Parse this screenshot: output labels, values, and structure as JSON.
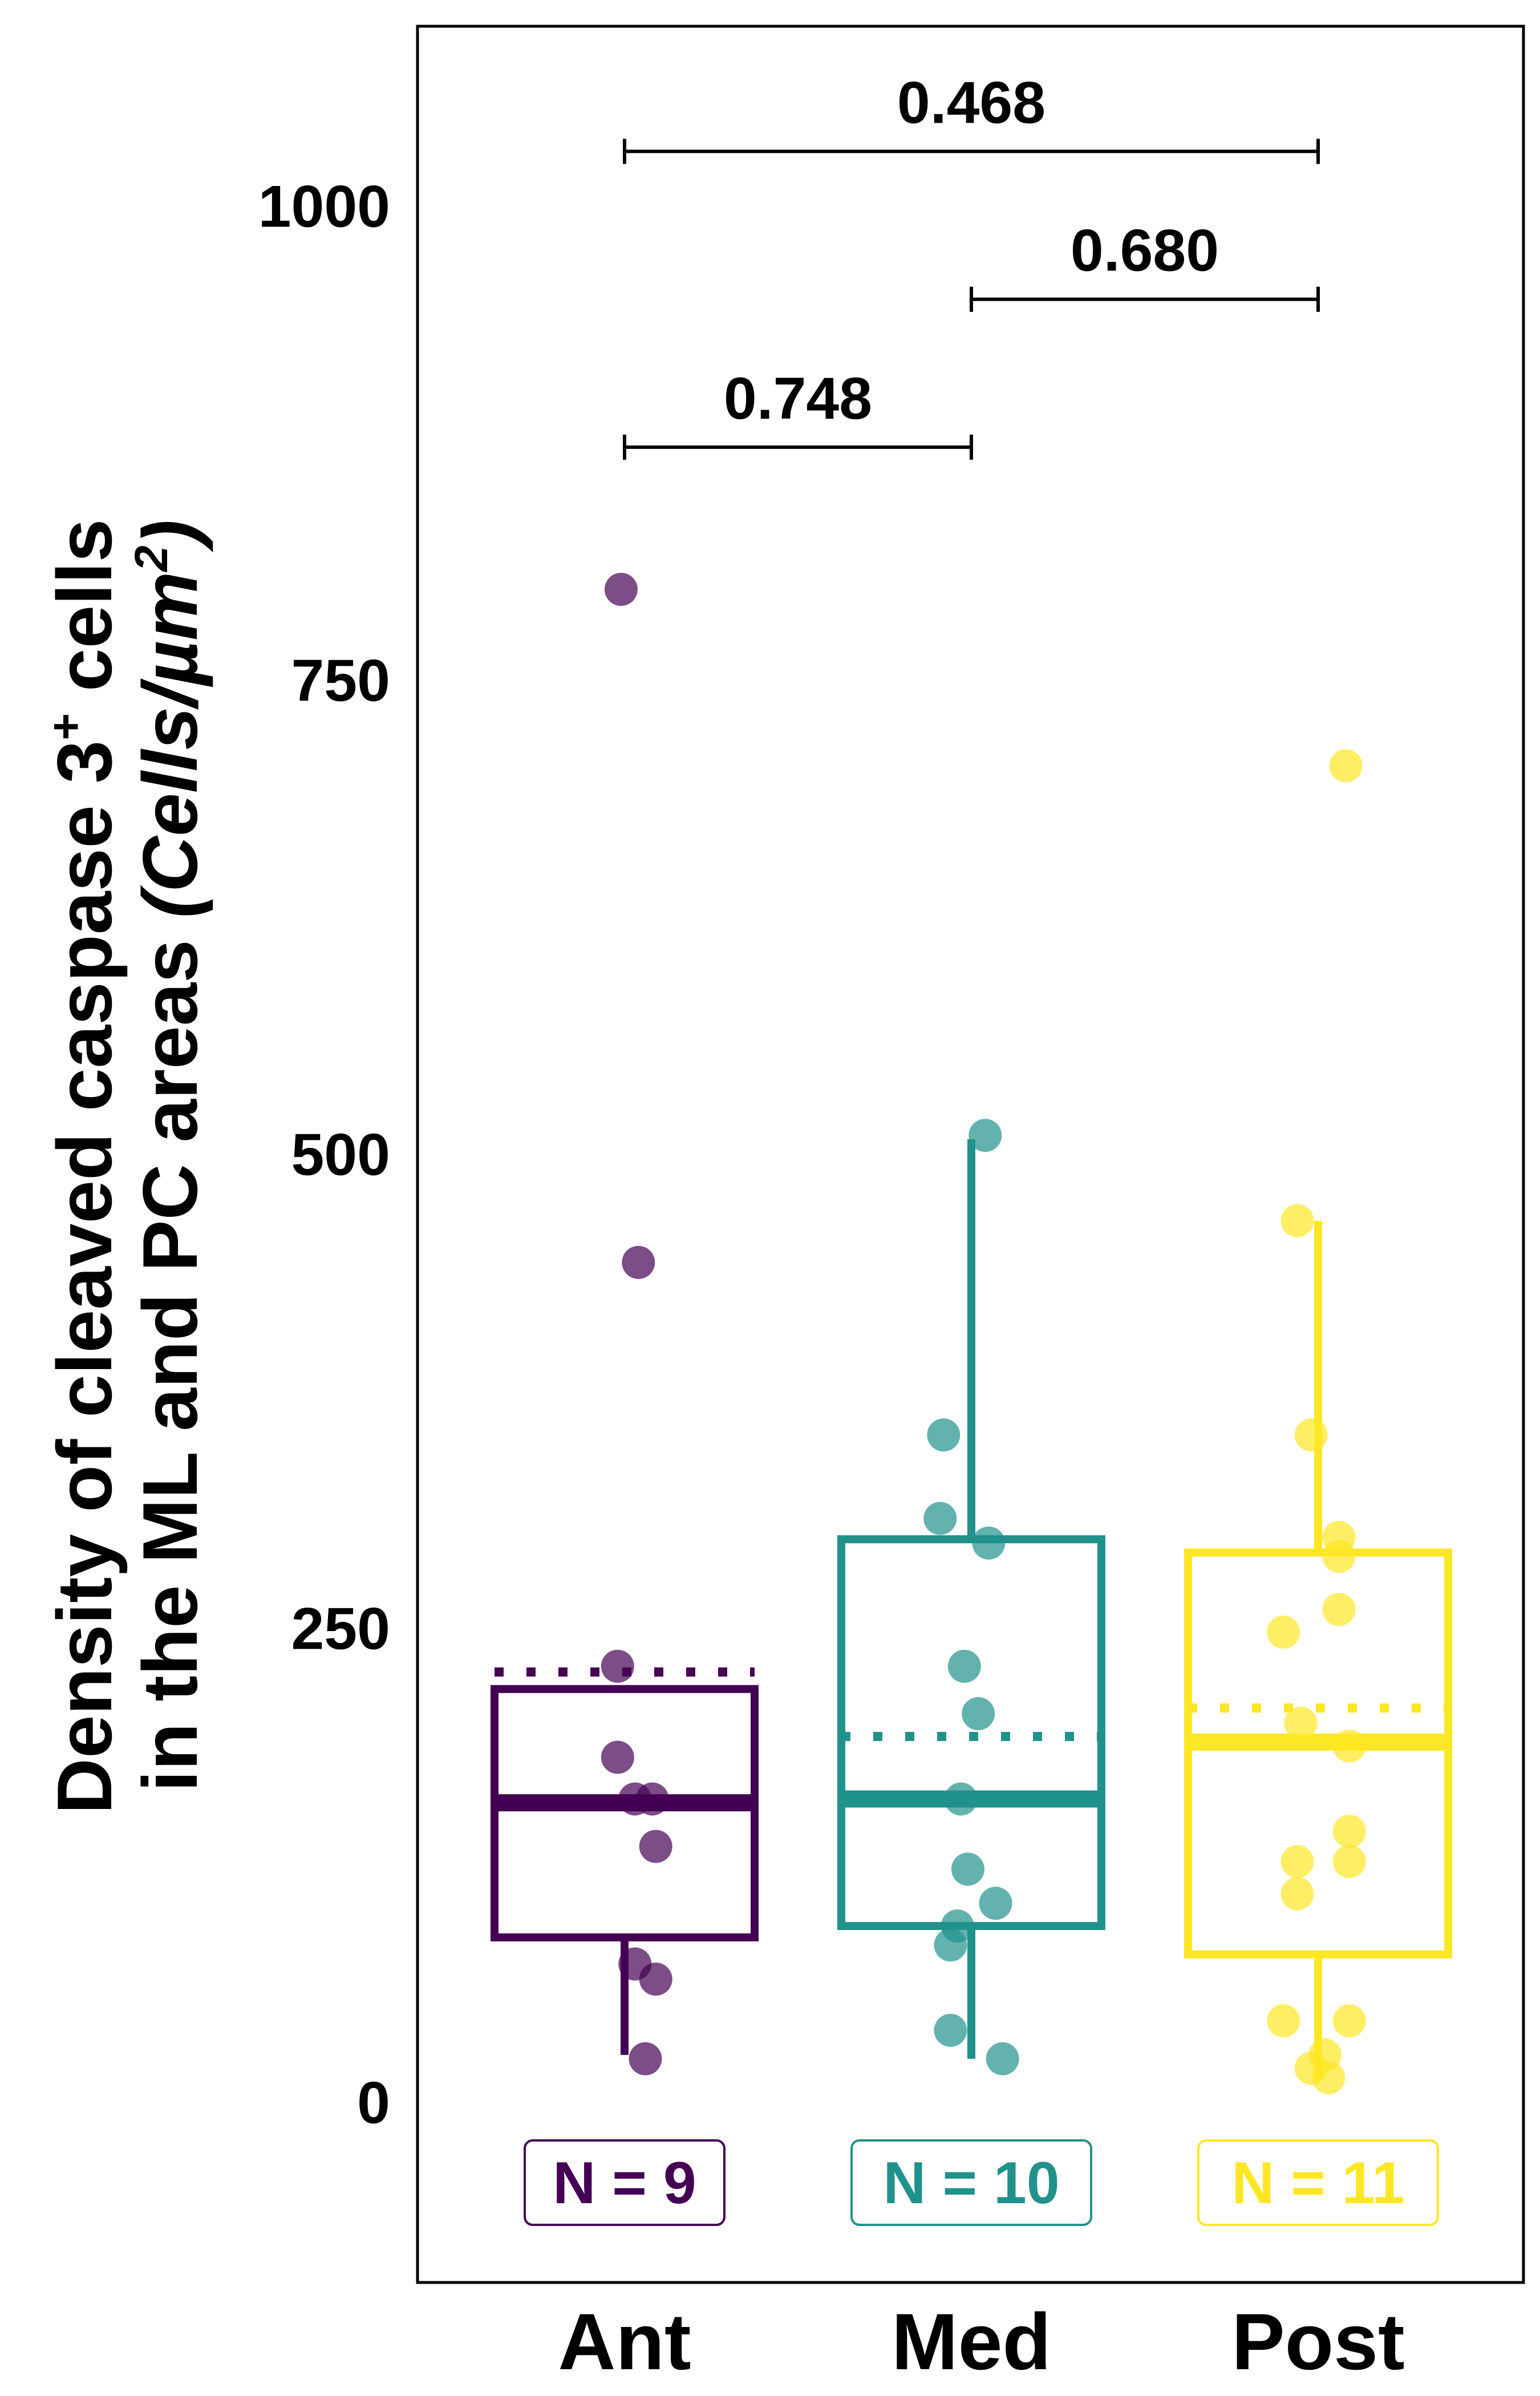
{
  "chart_data": {
    "type": "box",
    "ylabel": {
      "line1_prefix": "Density of cleaved caspase 3",
      "line1_sup": "+",
      "line1_suffix": " cells",
      "line2_plain": "in the ML and PC areas ",
      "line2_italic": "(Cells/µm",
      "line2_sup": "2",
      "line2_end": ")"
    },
    "xlabel": "",
    "ylim": [
      -95,
      1095
    ],
    "yticks": [
      0,
      250,
      500,
      750,
      1000
    ],
    "grid": false,
    "categories": [
      "Ant",
      "Med",
      "Post"
    ],
    "colors": [
      "#440154",
      "#21918C",
      "#FDE725"
    ],
    "groups": [
      {
        "name": "Ant",
        "n_label": "N = 9",
        "whisker_low": 25,
        "q1": 87,
        "median": 158,
        "q3": 218,
        "whisker_high": 218,
        "mean": 227,
        "points": [
          {
            "x": -0.01,
            "y": 798
          },
          {
            "x": 0.04,
            "y": 443
          },
          {
            "x": -0.02,
            "y": 230
          },
          {
            "x": -0.02,
            "y": 182
          },
          {
            "x": 0.03,
            "y": 160
          },
          {
            "x": 0.08,
            "y": 160
          },
          {
            "x": 0.09,
            "y": 135
          },
          {
            "x": 0.03,
            "y": 73
          },
          {
            "x": 0.09,
            "y": 65
          },
          {
            "x": 0.06,
            "y": 23
          }
        ]
      },
      {
        "name": "Med",
        "n_label": "N = 10",
        "whisker_low": 23,
        "q1": 93,
        "median": 160,
        "q3": 297,
        "whisker_high": 508,
        "mean": 193,
        "points": [
          {
            "x": 0.04,
            "y": 510
          },
          {
            "x": -0.08,
            "y": 352
          },
          {
            "x": -0.09,
            "y": 308
          },
          {
            "x": 0.05,
            "y": 295
          },
          {
            "x": -0.02,
            "y": 230
          },
          {
            "x": 0.02,
            "y": 205
          },
          {
            "x": -0.03,
            "y": 160
          },
          {
            "x": -0.01,
            "y": 123
          },
          {
            "x": 0.07,
            "y": 105
          },
          {
            "x": -0.04,
            "y": 93
          },
          {
            "x": -0.06,
            "y": 83
          },
          {
            "x": -0.06,
            "y": 38
          },
          {
            "x": 0.09,
            "y": 23
          }
        ]
      },
      {
        "name": "Post",
        "n_label": "N = 11",
        "whisker_low": 13,
        "q1": 78,
        "median": 190,
        "q3": 290,
        "whisker_high": 465,
        "mean": 208,
        "points": [
          {
            "x": 0.08,
            "y": 705
          },
          {
            "x": -0.06,
            "y": 465
          },
          {
            "x": -0.02,
            "y": 352
          },
          {
            "x": 0.06,
            "y": 298
          },
          {
            "x": 0.06,
            "y": 288
          },
          {
            "x": -0.1,
            "y": 248
          },
          {
            "x": 0.06,
            "y": 260
          },
          {
            "x": -0.05,
            "y": 200
          },
          {
            "x": 0.09,
            "y": 188
          },
          {
            "x": 0.09,
            "y": 143
          },
          {
            "x": -0.06,
            "y": 127
          },
          {
            "x": 0.09,
            "y": 127
          },
          {
            "x": -0.06,
            "y": 110
          },
          {
            "x": -0.1,
            "y": 43
          },
          {
            "x": 0.09,
            "y": 43
          },
          {
            "x": 0.02,
            "y": 25
          },
          {
            "x": -0.02,
            "y": 18
          },
          {
            "x": 0.03,
            "y": 13
          }
        ]
      }
    ],
    "comparisons": [
      {
        "from": "Ant",
        "to": "Med",
        "label": "0.748",
        "y": 873
      },
      {
        "from": "Med",
        "to": "Post",
        "label": "0.680",
        "y": 951
      },
      {
        "from": "Ant",
        "to": "Post",
        "label": "0.468",
        "y": 1029
      }
    ]
  }
}
